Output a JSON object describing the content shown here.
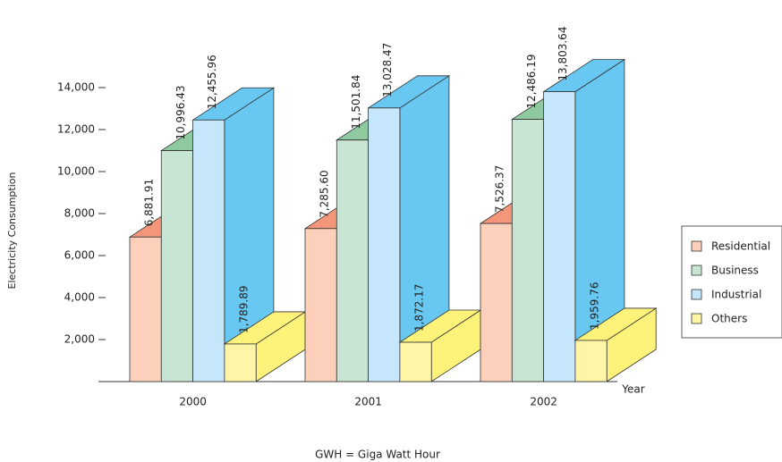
{
  "chart_data": {
    "type": "bar3d",
    "y_label": "Electricity Consumption",
    "x_label": "Year",
    "note": "GWH = Giga Watt Hour",
    "categories": [
      "2000",
      "2001",
      "2002"
    ],
    "series": [
      {
        "name": "Residential",
        "color": "#fdd0bc",
        "side_color": "#f4967a",
        "values": [
          6881.91,
          7285.6,
          7526.37
        ],
        "value_labels": [
          "6,881.91",
          "7,285.60",
          "7,526.37"
        ]
      },
      {
        "name": "Business",
        "color": "#c8e4d2",
        "side_color": "#8fc9a0",
        "values": [
          10996.43,
          11501.84,
          12486.19
        ],
        "value_labels": [
          "10,996.43",
          "11,501.84",
          "12,486.19"
        ]
      },
      {
        "name": "Industrial",
        "color": "#c6e6fb",
        "side_color": "#68c8f2",
        "values": [
          12455.96,
          13028.47,
          13803.64
        ],
        "value_labels": [
          "12,455.96",
          "13,028.47",
          "13,803.64"
        ]
      },
      {
        "name": "Others",
        "color": "#fef6a6",
        "side_color": "#fdf27a",
        "values": [
          1789.89,
          1872.17,
          1959.76
        ],
        "value_labels": [
          "1,789.89",
          "1,872.17",
          "1,959.76"
        ]
      }
    ],
    "ylim": [
      0,
      14000
    ],
    "yticks": [
      {
        "value": 2000,
        "label": "2,000"
      },
      {
        "value": 4000,
        "label": "4,000"
      },
      {
        "value": 6000,
        "label": "6,000"
      },
      {
        "value": 8000,
        "label": "8,000"
      },
      {
        "value": 10000,
        "label": "10,000"
      },
      {
        "value": 12000,
        "label": "12,000"
      },
      {
        "value": 14000,
        "label": "14,000"
      }
    ],
    "legend": "right"
  }
}
